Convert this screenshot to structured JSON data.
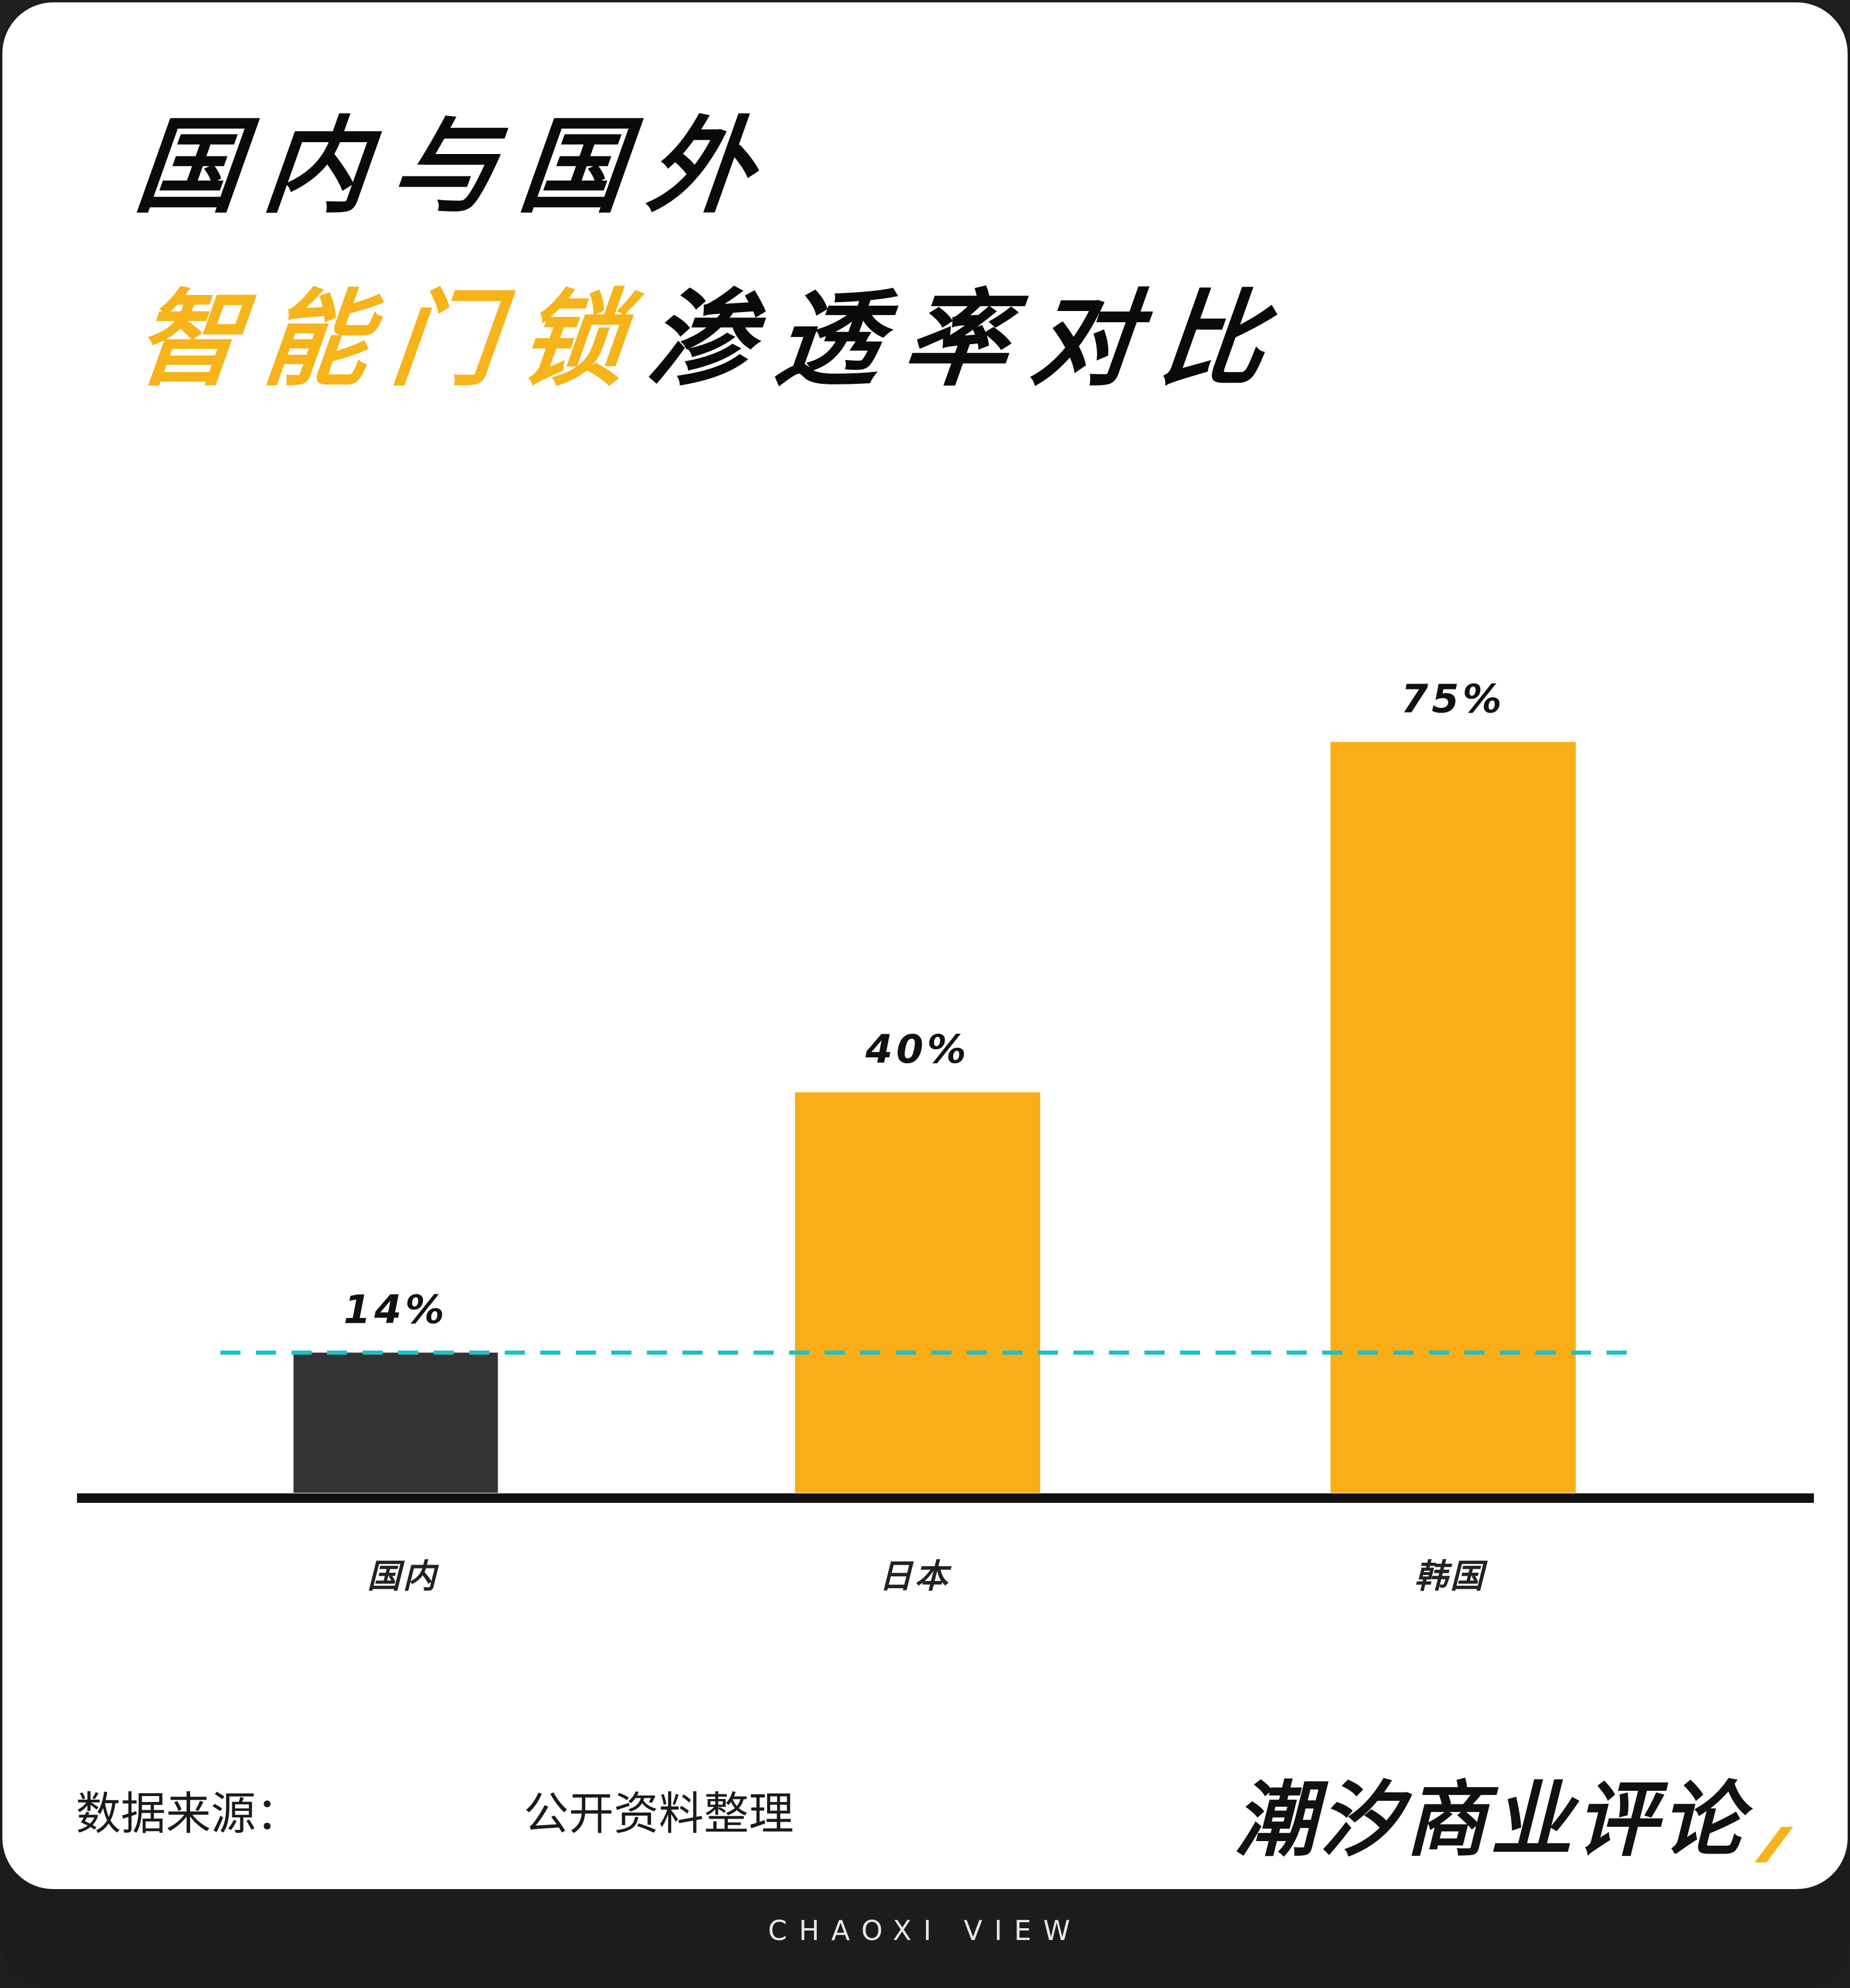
{
  "title": {
    "line1": "国内与国外",
    "line2_highlight": "智能门锁",
    "line2_rest": "渗透率对比"
  },
  "chart_data": {
    "type": "bar",
    "categories": [
      "国内",
      "日本",
      "韩国"
    ],
    "values": [
      14,
      40,
      75
    ],
    "value_labels": [
      "14%",
      "40%",
      "75%"
    ],
    "bar_colors": [
      "#333333",
      "#f9ae17",
      "#f9ae17"
    ],
    "reference_line": {
      "value": 14,
      "color": "#1fbfc9",
      "style": "dashed"
    },
    "ylim": [
      0,
      100
    ],
    "grid": false,
    "xlabel": "",
    "ylabel": ""
  },
  "footer": {
    "source_label": "数据来源：",
    "source_value": "公开资料整理",
    "brand": "潮汐商业评论",
    "tagline": "CHAOXI VIEW"
  },
  "colors": {
    "accent": "#f6b41a",
    "dark": "#1c1c1c",
    "reference": "#1fbfc9"
  }
}
